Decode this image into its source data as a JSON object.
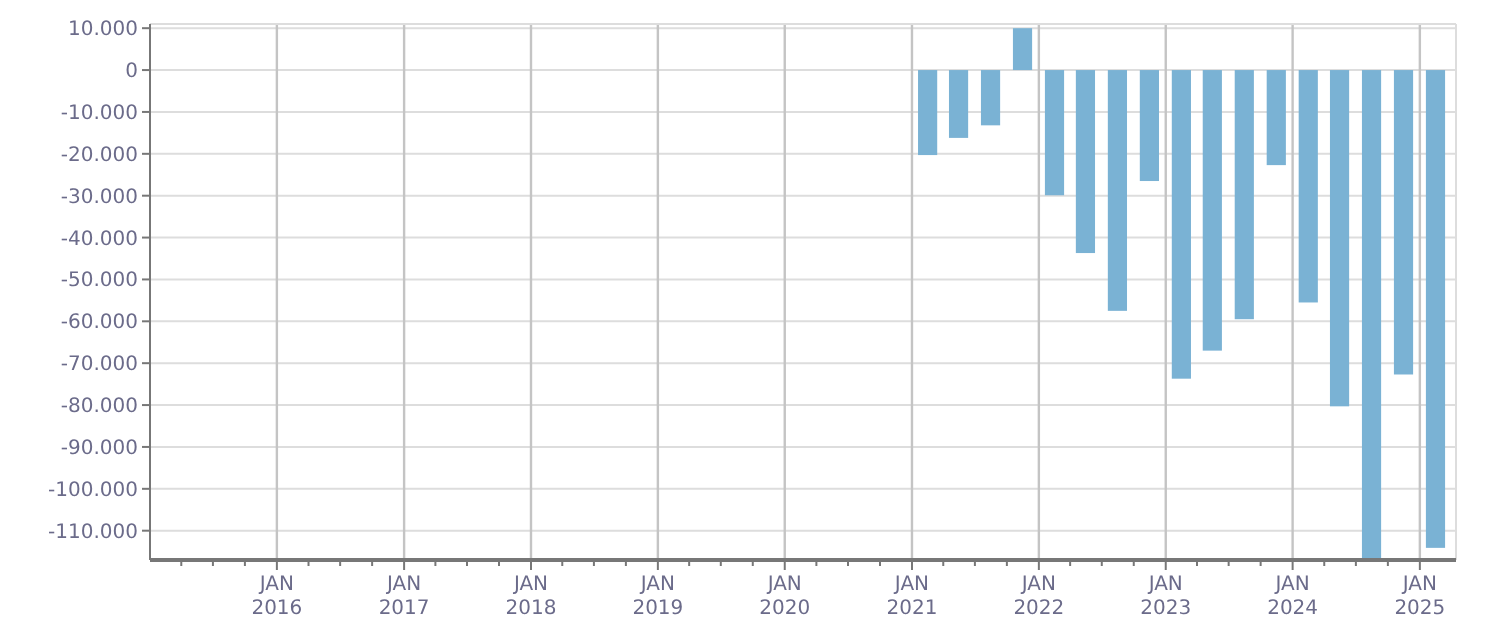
{
  "chart_data": {
    "type": "bar",
    "x": [
      "2021-02-15",
      "2021-05-15",
      "2021-08-15",
      "2021-11-15",
      "2022-02-15",
      "2022-05-15",
      "2022-08-15",
      "2022-11-15",
      "2023-02-15",
      "2023-05-15",
      "2023-08-15",
      "2023-11-15",
      "2024-02-15",
      "2024-05-15",
      "2024-08-15",
      "2024-11-15",
      "2025-02-15"
    ],
    "values": [
      -20300,
      -16200,
      -13200,
      10000,
      -29900,
      -43700,
      -57500,
      -26500,
      -73700,
      -67000,
      -59500,
      -22700,
      -55500,
      -80300,
      -117000,
      -72700,
      -114100
    ],
    "color": "#7ab2d4",
    "xlim": [
      "2015-01-01",
      "2025-04-15"
    ],
    "xticks": [
      {
        "value": "2015-04-01",
        "label": null
      },
      {
        "value": "2015-07-01",
        "label": null
      },
      {
        "value": "2015-10-01",
        "label": null
      },
      {
        "value": "2016-01-01",
        "label": "JAN 2016"
      },
      {
        "value": "2016-04-01",
        "label": null
      },
      {
        "value": "2016-07-01",
        "label": null
      },
      {
        "value": "2016-10-01",
        "label": null
      },
      {
        "value": "2017-01-01",
        "label": "JAN 2017"
      },
      {
        "value": "2017-04-01",
        "label": null
      },
      {
        "value": "2017-07-01",
        "label": null
      },
      {
        "value": "2017-10-01",
        "label": null
      },
      {
        "value": "2018-01-01",
        "label": "JAN 2018"
      },
      {
        "value": "2018-04-01",
        "label": null
      },
      {
        "value": "2018-07-01",
        "label": null
      },
      {
        "value": "2018-10-01",
        "label": null
      },
      {
        "value": "2019-01-01",
        "label": "JAN 2019"
      },
      {
        "value": "2019-04-01",
        "label": null
      },
      {
        "value": "2019-07-01",
        "label": null
      },
      {
        "value": "2019-10-01",
        "label": null
      },
      {
        "value": "2020-01-01",
        "label": "JAN 2020"
      },
      {
        "value": "2020-04-01",
        "label": null
      },
      {
        "value": "2020-07-01",
        "label": null
      },
      {
        "value": "2020-10-01",
        "label": null
      },
      {
        "value": "2021-01-01",
        "label": "JAN 2021"
      },
      {
        "value": "2021-04-01",
        "label": null
      },
      {
        "value": "2021-07-01",
        "label": null
      },
      {
        "value": "2021-10-01",
        "label": null
      },
      {
        "value": "2022-01-01",
        "label": "JAN 2022"
      },
      {
        "value": "2022-04-01",
        "label": null
      },
      {
        "value": "2022-07-01",
        "label": null
      },
      {
        "value": "2022-10-01",
        "label": null
      },
      {
        "value": "2023-01-01",
        "label": "JAN 2023"
      },
      {
        "value": "2023-04-01",
        "label": null
      },
      {
        "value": "2023-07-01",
        "label": null
      },
      {
        "value": "2023-10-01",
        "label": null
      },
      {
        "value": "2024-01-01",
        "label": "JAN 2024"
      },
      {
        "value": "2024-04-01",
        "label": null
      },
      {
        "value": "2024-07-01",
        "label": null
      },
      {
        "value": "2024-10-01",
        "label": null
      },
      {
        "value": "2025-01-01",
        "label": "JAN 2025"
      }
    ],
    "ylim": [
      -117000,
      11000
    ],
    "yticks": [
      {
        "value": 10000,
        "label": "10.000"
      },
      0,
      {
        "value": -10000,
        "label": "-10.000"
      },
      {
        "value": -20000,
        "label": "-20.000"
      },
      {
        "value": -30000,
        "label": "-30.000"
      },
      {
        "value": -40000,
        "label": "-40.000"
      },
      {
        "value": -50000,
        "label": "-50.000"
      },
      {
        "value": -60000,
        "label": "-60.000"
      },
      {
        "value": -70000,
        "label": "-70.000"
      },
      {
        "value": -80000,
        "label": "-80.000"
      },
      {
        "value": -90000,
        "label": "-90.000"
      },
      {
        "value": -100000,
        "label": "-100.000"
      },
      {
        "value": -110000,
        "label": "-110.000"
      }
    ],
    "grid": true
  }
}
